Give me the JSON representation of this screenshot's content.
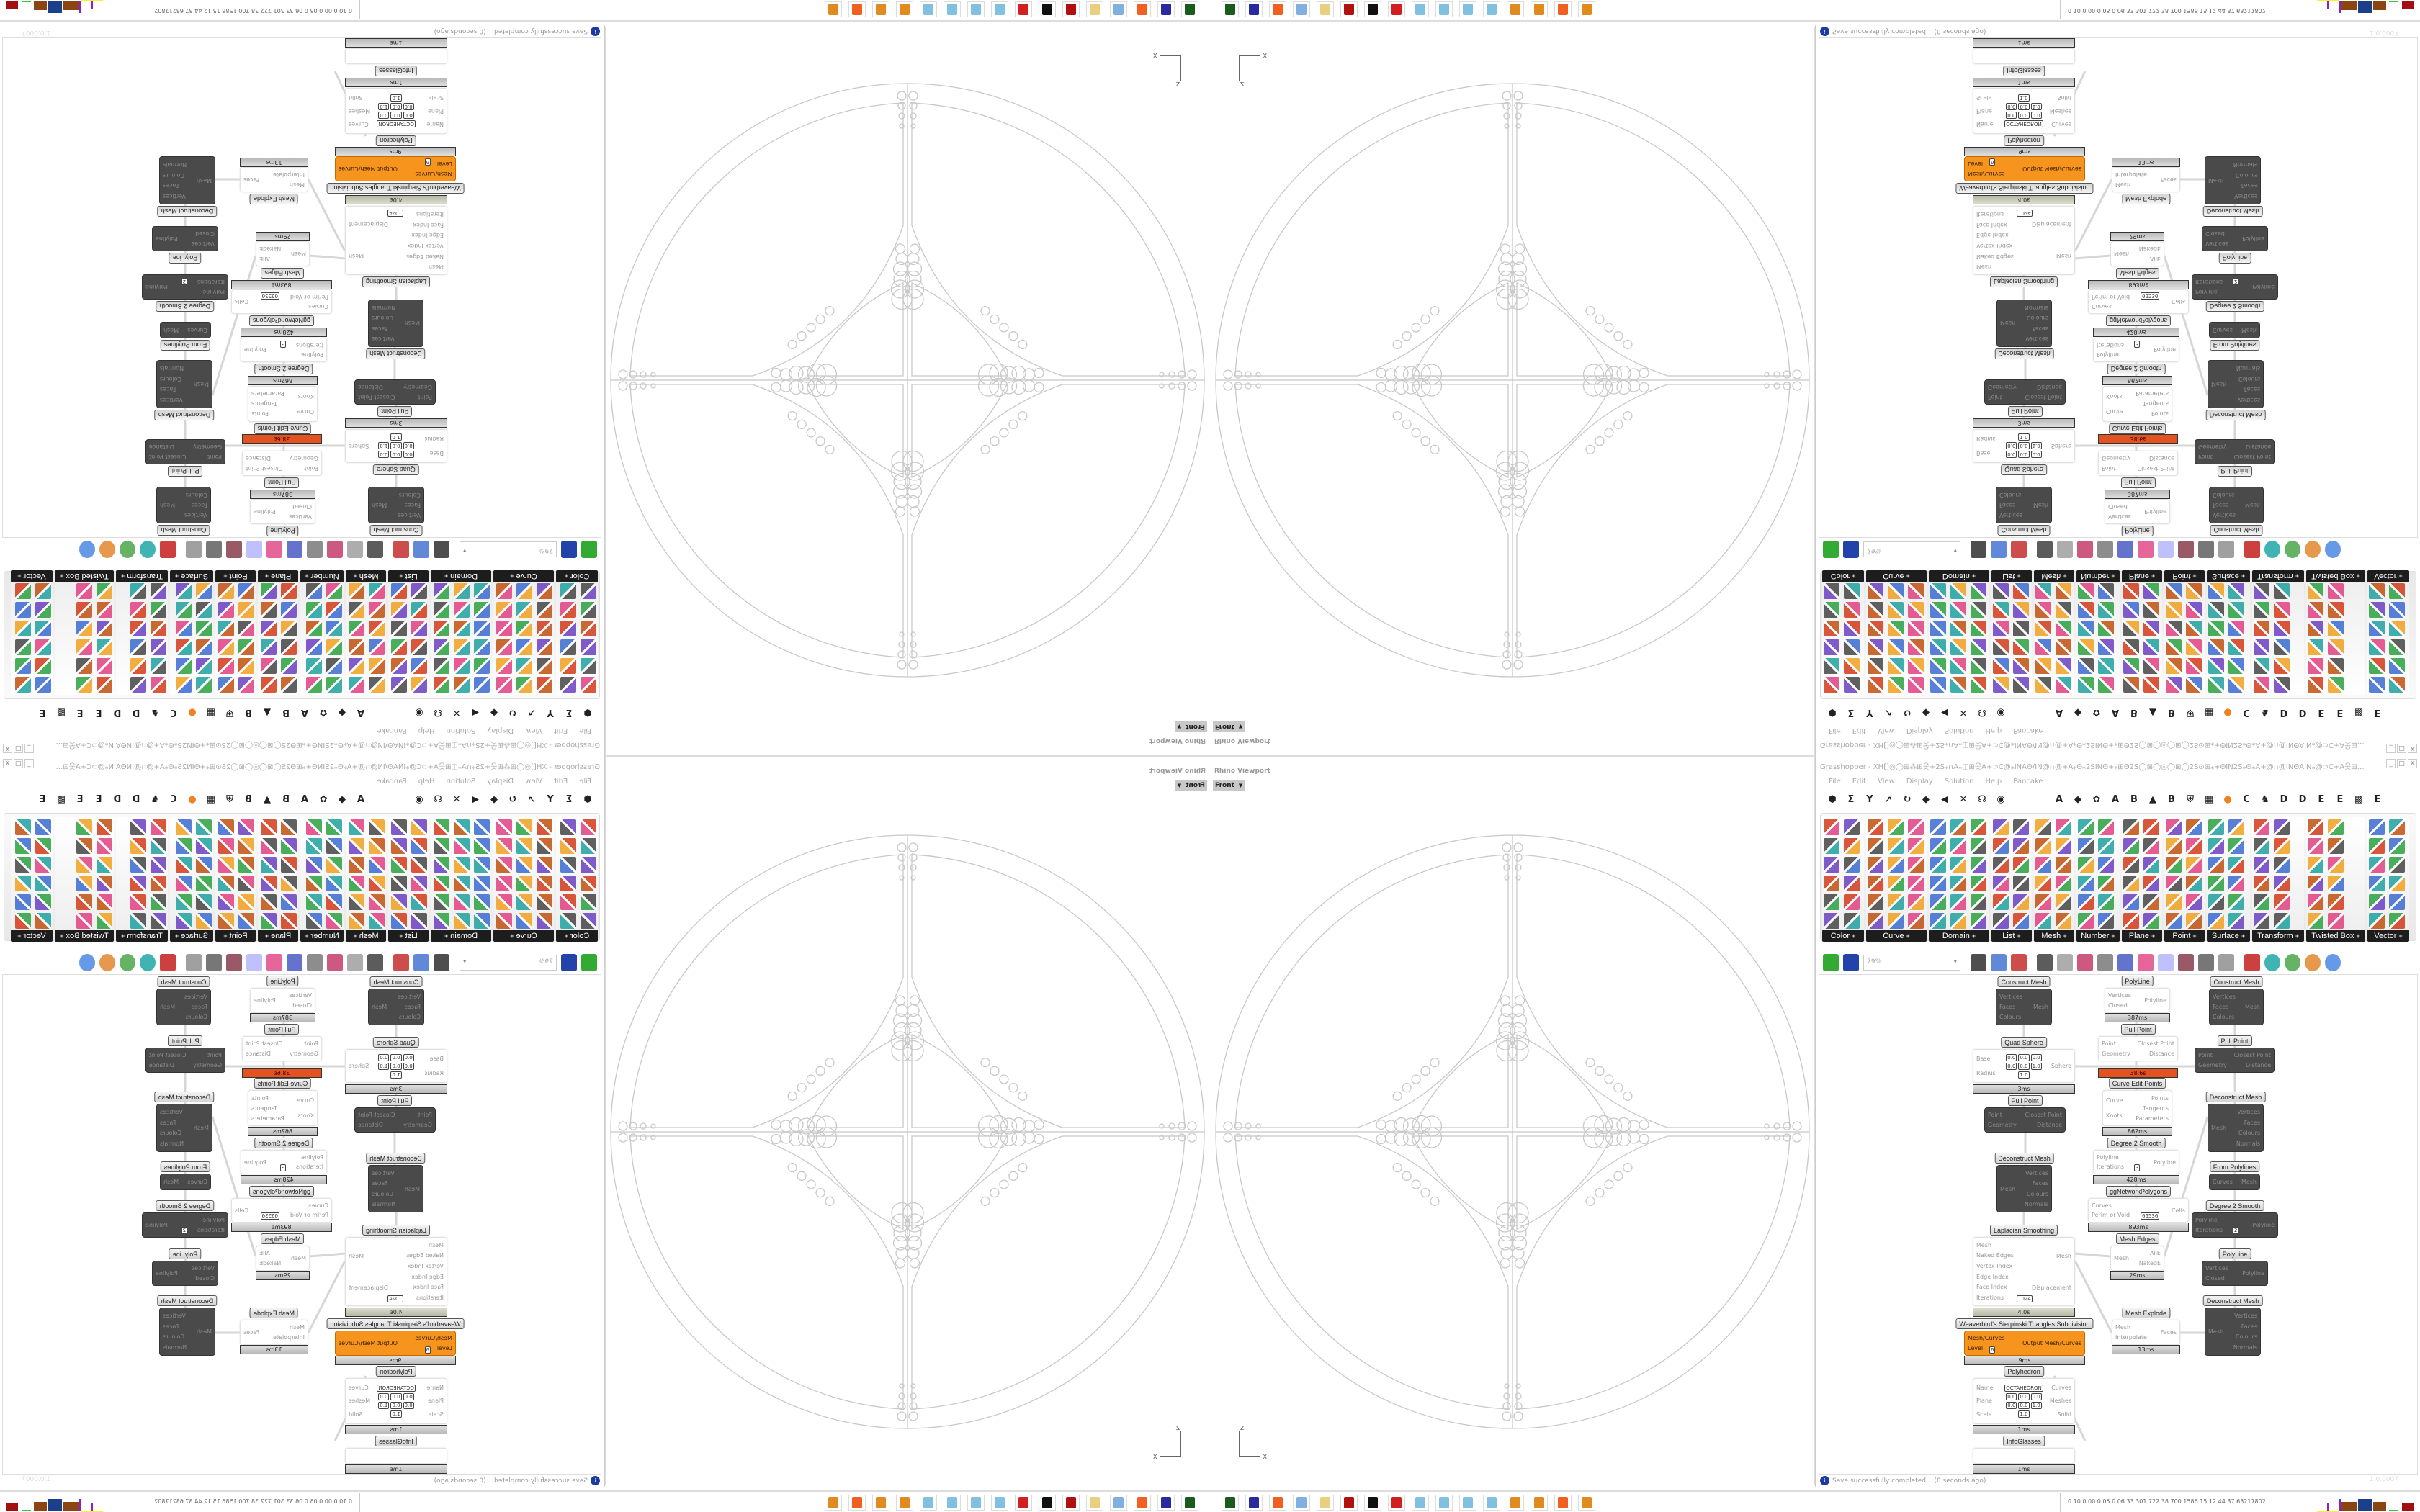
{
  "viewport": {
    "title": "Rhino Viewport",
    "view_name": "Front",
    "axis_z": "Z",
    "axis_x": "X",
    "line_color": "#c8c8c8"
  },
  "grasshopper": {
    "title": "Grasshopper - XH[]◎◯⊞⁂⊞웃+2S⁎∩A⁎◫⊞웃A+⊃C@⁎INAΘ∕IN@∩@+A⁎Θ⁎2SINΘ+⁎⊞Θ2S◯⊠◯◎◯⊠◯2S⊙⊞⁎+ΘIN2S⁎Θ⁎A+@∩@INΘAIN⁎@⊃C+A웃⊞◫⁎A∩⁎...",
    "window_buttons": [
      "_",
      "□",
      "X"
    ],
    "menu": [
      "File",
      "Edit",
      "View",
      "Display",
      "Solution",
      "Help",
      "Pancake"
    ],
    "icon_row": [
      "⬢",
      "Σ",
      "Y",
      "➚",
      "↻",
      "◆",
      "◀",
      "✕",
      "☊",
      "◉",
      "",
      "A",
      "◆",
      "✿",
      "A",
      "B",
      "▲",
      "B",
      "⛨",
      "▦",
      "●",
      "C",
      "♞",
      "D",
      "D",
      "E",
      "E",
      "▩",
      "E"
    ],
    "ribbon_tabs": [
      {
        "label": "Color",
        "cols": 2
      },
      {
        "label": "Curve",
        "cols": 3
      },
      {
        "label": "Domain",
        "cols": 3
      },
      {
        "label": "List",
        "cols": 2
      },
      {
        "label": "Mesh",
        "cols": 2
      },
      {
        "label": "Number",
        "cols": 2
      },
      {
        "label": "Plane",
        "cols": 2
      },
      {
        "label": "Point",
        "cols": 2
      },
      {
        "label": "Surface",
        "cols": 2
      },
      {
        "label": "Transform",
        "cols": 2
      },
      {
        "label": "Twisted Box",
        "cols": 2
      },
      {
        "label": "Vector",
        "cols": 2
      }
    ],
    "tab_expand_glyph": "+",
    "zoom_level": "79%",
    "canvas": {
      "nodes": [
        {
          "id": "cm1",
          "label": "Construct Mesh",
          "style": "dark",
          "inputs": [
            "Vertices",
            "Faces",
            "Colours"
          ],
          "outputs": [
            "Mesh"
          ]
        },
        {
          "id": "qs",
          "label": "Quad Sphere",
          "style": "white",
          "inputs": [
            "Base",
            "Radius"
          ],
          "outputs": [
            "Sphere"
          ],
          "values": [
            "0.0",
            "0.0",
            "0.0",
            "0.0",
            "0.0",
            "1.0",
            "1.0"
          ],
          "timer": "3ms"
        },
        {
          "id": "pp1",
          "label": "Pull Point",
          "style": "dark",
          "inputs": [
            "Point",
            "Geometry"
          ],
          "outputs": [
            "Closest Point",
            "Distance"
          ]
        },
        {
          "id": "dm1",
          "label": "Deconstruct Mesh",
          "style": "dark",
          "inputs": [
            "Mesh"
          ],
          "outputs": [
            "Vertices",
            "Faces",
            "Colours",
            "Normals"
          ]
        },
        {
          "id": "lap",
          "label": "Laplacian Smoothing",
          "style": "white",
          "inputs": [
            "Mesh",
            "Naked Edges",
            "Vertex Index",
            "Edge Index",
            "Face Index",
            "Iterations"
          ],
          "outputs": [
            "Mesh",
            "Displacement"
          ],
          "values": [
            "1024"
          ],
          "timer": "4.0s"
        },
        {
          "id": "wb",
          "label": "Weaverbird's Sierpinski Triangles Subdivision",
          "style": "orange",
          "inputs": [
            "Mesh/Curves",
            "Level"
          ],
          "outputs": [
            "Output Mesh/Curves"
          ],
          "values": [
            "6"
          ],
          "timer": "9ms"
        },
        {
          "id": "poly",
          "label": "Polyhedron",
          "style": "white",
          "inputs": [
            "Name",
            "Plane",
            "Scale"
          ],
          "outputs": [
            "Curves",
            "Meshes",
            "Solid"
          ],
          "values": [
            "OCTAHEDRON",
            "0.0",
            "0.0",
            "0.0",
            "0.0",
            "0.0",
            "1.0",
            "1.0"
          ],
          "timer": "1ms"
        },
        {
          "id": "ig",
          "label": "InfoGlasses",
          "style": "white",
          "inputs": [],
          "outputs": [],
          "timer": "1ms"
        },
        {
          "id": "pl1",
          "label": "PolyLine",
          "style": "white",
          "inputs": [
            "Vertices",
            "Closed"
          ],
          "outputs": [
            "Polyline"
          ],
          "timer": "387ms"
        },
        {
          "id": "pp2",
          "label": "Pull Point",
          "style": "white",
          "inputs": [
            "Point",
            "Geometry"
          ],
          "outputs": [
            "Closest Point",
            "Distance"
          ],
          "timer": "38.6s"
        },
        {
          "id": "cep",
          "label": "Curve Edit Points",
          "style": "white",
          "inputs": [
            "Curve",
            "Knots"
          ],
          "outputs": [
            "Points",
            "Tangents",
            "Parameters"
          ],
          "timer": "862ms"
        },
        {
          "id": "d2s1",
          "label": "Degree 2 Smooth",
          "style": "white",
          "inputs": [
            "Polyline",
            "Iterations"
          ],
          "outputs": [
            "Polyline"
          ],
          "values": [
            "3"
          ],
          "timer": "428ms"
        },
        {
          "id": "ggn",
          "label": "ggNetworkPolygons",
          "style": "white",
          "inputs": [
            "Curves",
            "Perim or Void"
          ],
          "outputs": [
            "Cells"
          ],
          "values": [
            "65536"
          ],
          "timer": "893ms"
        },
        {
          "id": "me",
          "label": "Mesh Edges",
          "style": "white",
          "inputs": [
            "Mesh"
          ],
          "outputs": [
            "AllE",
            "NakedE"
          ],
          "timer": "29ms"
        },
        {
          "id": "mx",
          "label": "Mesh Explode",
          "style": "white",
          "inputs": [
            "Mesh",
            "Interpolate"
          ],
          "outputs": [
            "Faces"
          ],
          "timer": "13ms"
        },
        {
          "id": "cm2",
          "label": "Construct Mesh",
          "style": "dark",
          "inputs": [
            "Vertices",
            "Faces",
            "Colours"
          ],
          "outputs": [
            "Mesh"
          ]
        },
        {
          "id": "pp3",
          "label": "Pull Point",
          "style": "dark",
          "inputs": [
            "Point",
            "Geometry"
          ],
          "outputs": [
            "Closest Point",
            "Distance"
          ]
        },
        {
          "id": "dm2",
          "label": "Deconstruct Mesh",
          "style": "dark",
          "inputs": [
            "Mesh"
          ],
          "outputs": [
            "Vertices",
            "Faces",
            "Colours",
            "Normals"
          ]
        },
        {
          "id": "fp",
          "label": "From Polylines",
          "style": "dark",
          "inputs": [
            "Curves"
          ],
          "outputs": [
            "Mesh"
          ]
        },
        {
          "id": "d2s2",
          "label": "Degree 2 Smooth",
          "style": "dark",
          "inputs": [
            "Polyline",
            "Iterations"
          ],
          "outputs": [
            "Polyline"
          ],
          "values": [
            "2"
          ]
        },
        {
          "id": "pl2",
          "label": "PolyLine",
          "style": "dark",
          "inputs": [
            "Vertices",
            "Closed"
          ],
          "outputs": [
            "Polyline"
          ]
        },
        {
          "id": "dm3",
          "label": "Deconstruct Mesh",
          "style": "dark",
          "inputs": [
            "Mesh"
          ],
          "outputs": [
            "Vertices",
            "Faces",
            "Colours",
            "Normals"
          ]
        }
      ]
    },
    "status": "Save successfully completed... (0 seconds ago)",
    "version": "1.0.0007"
  },
  "taskbar": {
    "apps": [
      "terminal",
      "floppy-64",
      "firefox",
      "calculator",
      "folder",
      "solidworks",
      "inkscape",
      "red-app",
      "paint",
      "paint",
      "paint",
      "paint",
      "blender",
      "blender",
      "firefox",
      "blender"
    ],
    "stats": "0.10 0.00 0.05 0.06  33  301  722  38  700 1586  15  12  44  37  63217802"
  }
}
